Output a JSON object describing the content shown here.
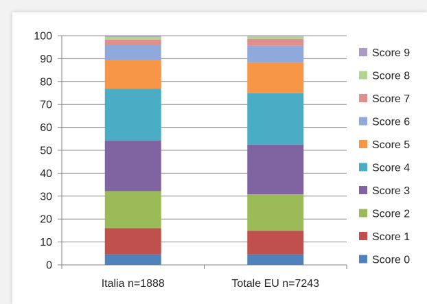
{
  "chart_data": {
    "type": "bar",
    "stacked": true,
    "categories": [
      "Italia n=1888",
      "Totale EU n=7243"
    ],
    "ylim": [
      0,
      100
    ],
    "yticks": [
      0,
      10,
      20,
      30,
      40,
      50,
      60,
      70,
      80,
      90,
      100
    ],
    "grid": true,
    "legend_position": "right",
    "series": [
      {
        "name": "Score 0",
        "color": "#4f81bd",
        "values": [
          4.6,
          4.6
        ]
      },
      {
        "name": "Score 1",
        "color": "#c0504d",
        "values": [
          11.4,
          10.3
        ]
      },
      {
        "name": "Score 2",
        "color": "#9bbb59",
        "values": [
          16.2,
          15.9
        ]
      },
      {
        "name": "Score 3",
        "color": "#8064a2",
        "values": [
          22.1,
          21.7
        ]
      },
      {
        "name": "Score 4",
        "color": "#4bacc6",
        "values": [
          22.6,
          22.4
        ]
      },
      {
        "name": "Score 5",
        "color": "#f79646",
        "values": [
          12.6,
          13.5
        ]
      },
      {
        "name": "Score 6",
        "color": "#8fa9dc",
        "values": [
          6.3,
          7.2
        ]
      },
      {
        "name": "Score 7",
        "color": "#df8f8e",
        "values": [
          2.5,
          3.0
        ]
      },
      {
        "name": "Score 8",
        "color": "#b4d492",
        "values": [
          1.2,
          1.2
        ]
      },
      {
        "name": "Score 9",
        "color": "#a99bc4",
        "values": [
          0.5,
          0.2
        ]
      }
    ]
  }
}
